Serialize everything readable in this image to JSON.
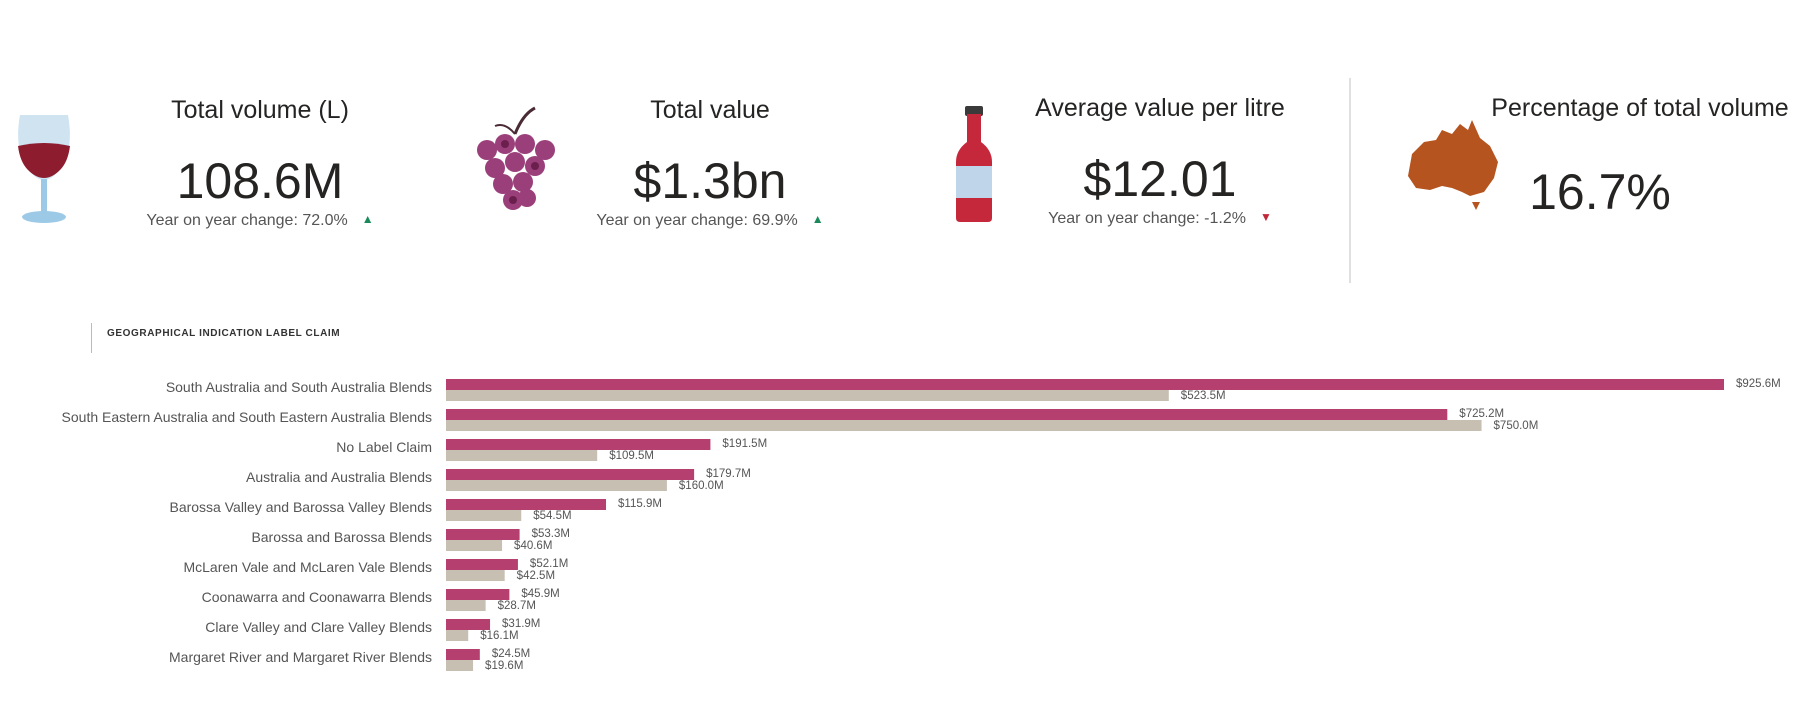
{
  "kpis": [
    {
      "title": "Total volume (L)",
      "value": "108.6M",
      "change_text": "Year on year change: 72.0%",
      "direction": "up",
      "icon": "wine-glass-icon"
    },
    {
      "title": "Total value",
      "value": "$1.3bn",
      "change_text": "Year on year change: 69.9%",
      "direction": "up",
      "icon": "grapes-icon"
    },
    {
      "title": "Average value per litre",
      "value": "$12.01",
      "change_text": "Year on year change: -1.2%",
      "direction": "down",
      "icon": "wine-bottle-icon"
    },
    {
      "title": "Percentage of total volume",
      "value": "16.7%",
      "icon": "australia-map-icon"
    }
  ],
  "arrows": {
    "up": "▲",
    "down": "▼"
  },
  "colors": {
    "primary_bar": "#b5406f",
    "secondary_bar": "#c7bfb2",
    "up": "#1a8a5a",
    "down": "#c0283a",
    "australia": "#b5541f"
  },
  "chart_data": {
    "type": "bar",
    "orientation": "horizontal",
    "title": "GEOGRAPHICAL INDICATION LABEL CLAIM",
    "categories": [
      "South Australia and South Australia Blends",
      "South Eastern Australia and South Eastern Australia Blends",
      "No Label Claim",
      "Australia and Australia Blends",
      "Barossa Valley and Barossa Valley Blends",
      "Barossa and Barossa Blends",
      "McLaren Vale and McLaren Vale Blends",
      "Coonawarra and Coonawarra Blends",
      "Clare Valley and Clare Valley Blends",
      "Margaret River and Margaret River Blends"
    ],
    "series": [
      {
        "values": [
          925.6,
          725.2,
          191.5,
          179.7,
          115.9,
          53.3,
          52.1,
          45.9,
          31.9,
          24.5
        ],
        "labels": [
          "$925.6M",
          "$725.2M",
          "$191.5M",
          "$179.7M",
          "$115.9M",
          "$53.3M",
          "$52.1M",
          "$45.9M",
          "$31.9M",
          "$24.5M"
        ]
      },
      {
        "values": [
          523.5,
          750.0,
          109.5,
          160.0,
          54.5,
          40.6,
          42.5,
          28.7,
          16.1,
          19.6
        ],
        "labels": [
          "$523.5M",
          "$750.0M",
          "$109.5M",
          "$160.0M",
          "$54.5M",
          "$40.6M",
          "$42.5M",
          "$28.7M",
          "$16.1M",
          "$19.6M"
        ]
      }
    ],
    "unit": "$M",
    "grid": false
  }
}
